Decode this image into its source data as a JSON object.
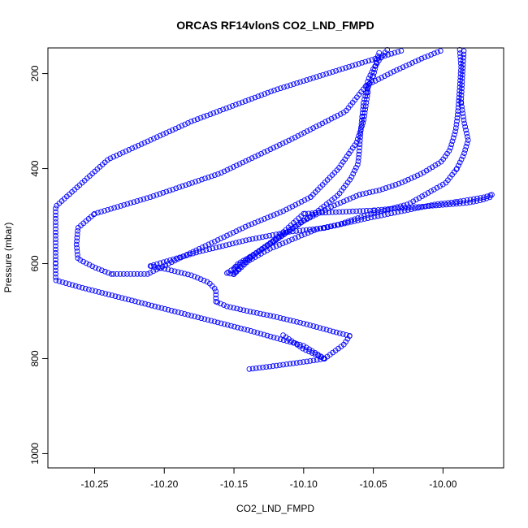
{
  "chart_data": {
    "type": "scatter",
    "title": "ORCAS RF14vlonS CO2_LND_FMPD",
    "xlabel": "CO2_LND_FMPD",
    "ylabel": "Pressure (mbar)",
    "xlim": [
      -10.2835,
      -9.9565
    ],
    "ylim": [
      1030,
      146
    ],
    "y_reversed": true,
    "x_ticks": [
      -10.25,
      -10.2,
      -10.15,
      -10.1,
      -10.05,
      -10.0
    ],
    "x_tick_labels": [
      "-10.25",
      "-10.20",
      "-10.15",
      "-10.10",
      "-10.05",
      "-10.00"
    ],
    "y_ticks": [
      200,
      400,
      600,
      800,
      1000
    ],
    "y_tick_labels": [
      "200",
      "400",
      "600",
      "800",
      "1000"
    ],
    "grid": false,
    "marker": "open-circle",
    "color": "#0000ff",
    "series": [
      {
        "segments": [
          {
            "x": [
              -10.139,
              -10.128,
              -10.11,
              -10.093,
              -10.085
            ],
            "y": [
              822,
              818,
              811,
              804,
              800
            ]
          },
          {
            "x": [
              -10.085,
              -10.078,
              -10.071,
              -10.067
            ],
            "y": [
              800,
              785,
              770,
              752
            ]
          },
          {
            "x": [
              -10.067,
              -10.08,
              -10.1,
              -10.12,
              -10.14,
              -10.155,
              -10.163
            ],
            "y": [
              752,
              742,
              726,
              712,
              700,
              690,
              680
            ]
          },
          {
            "x": [
              -10.163,
              -10.163,
              -10.168,
              -10.18,
              -10.198,
              -10.21
            ],
            "y": [
              680,
              655,
              640,
              625,
              612,
              605
            ]
          },
          {
            "x": [
              -10.21,
              -10.175,
              -10.14,
              -10.11,
              -10.085
            ],
            "y": [
              605,
              575,
              550,
              533,
              525
            ]
          },
          {
            "x": [
              -10.085,
              -10.055,
              -10.025,
              -10.005,
              -9.99
            ],
            "y": [
              525,
              505,
              487,
              475,
              470
            ]
          },
          {
            "x": [
              -9.99,
              -9.97,
              -9.965
            ],
            "y": [
              470,
              460,
              455
            ]
          },
          {
            "x": [
              -9.965,
              -9.966,
              -9.972,
              -9.982,
              -9.998,
              -10.015,
              -10.035,
              -10.05
            ],
            "y": [
              455,
              460,
              466,
              472,
              476,
              480,
              484,
              488
            ]
          },
          {
            "x": [
              -10.05,
              -10.08,
              -10.1
            ],
            "y": [
              488,
              492,
              495
            ]
          },
          {
            "x": [
              -10.1,
              -10.12,
              -10.14,
              -10.155
            ],
            "y": [
              495,
              548,
              590,
              620
            ]
          },
          {
            "x": [
              -10.155,
              -10.149,
              -10.15,
              -10.147,
              -10.138
            ],
            "y": [
              620,
              623,
              610,
              600,
              585
            ]
          },
          {
            "x": [
              -10.138,
              -10.115,
              -10.09,
              -10.075,
              -10.066,
              -10.061,
              -10.06,
              -10.059,
              -10.058
            ],
            "y": [
              585,
              540,
              490,
              455,
              420,
              390,
              360,
              320,
              290
            ]
          },
          {
            "x": [
              -10.058,
              -10.057,
              -10.054,
              -10.05
            ],
            "y": [
              290,
              260,
              230,
              205
            ]
          },
          {
            "x": [
              -10.05,
              -10.048,
              -10.047,
              -10.045
            ],
            "y": [
              205,
              180,
              165,
              150
            ]
          },
          {
            "x": [
              -10.04,
              -10.045,
              -10.05,
              -10.054,
              -10.054
            ],
            "y": [
              150,
              168,
              190,
              215,
              240
            ]
          },
          {
            "x": [
              -10.054,
              -10.057,
              -10.062,
              -10.075,
              -10.095
            ],
            "y": [
              240,
              300,
              345,
              400,
              460
            ]
          },
          {
            "x": [
              -10.095,
              -10.115,
              -10.14,
              -10.165,
              -10.19,
              -10.212
            ],
            "y": [
              460,
              490,
              520,
              555,
              590,
              622
            ]
          },
          {
            "x": [
              -10.212,
              -10.22,
              -10.228,
              -10.238
            ],
            "y": [
              622,
              622,
              622,
              622
            ]
          },
          {
            "x": [
              -10.238,
              -10.25,
              -10.262,
              -10.263,
              -10.262,
              -10.25
            ],
            "y": [
              622,
              608,
              590,
              560,
              525,
              495
            ]
          },
          {
            "x": [
              -10.25,
              -10.21,
              -10.16,
              -10.11,
              -10.07,
              -10.055
            ],
            "y": [
              495,
              460,
              410,
              340,
              280,
              225
            ]
          },
          {
            "x": [
              -10.055,
              -10.035,
              -10.015,
              -10.0
            ],
            "y": [
              225,
              195,
              168,
              150
            ]
          },
          {
            "x": [
              -9.988,
              -9.987,
              -9.988,
              -9.989,
              -9.99,
              -9.991,
              -9.993,
              -9.995,
              -10.001,
              -10.015,
              -10.03,
              -10.045,
              -10.06
            ],
            "y": [
              150,
              185,
              230,
              270,
              300,
              320,
              340,
              360,
              385,
              410,
              430,
              445,
              455
            ]
          },
          {
            "x": [
              -10.06,
              -10.08,
              -10.1
            ],
            "y": [
              455,
              480,
              510
            ]
          },
          {
            "x": [
              -10.1,
              -10.11,
              -10.122,
              -10.135,
              -10.145,
              -10.15
            ],
            "y": [
              510,
              530,
              555,
              580,
              605,
              622
            ]
          },
          {
            "x": [
              -10.15,
              -10.14,
              -10.125,
              -10.105,
              -10.09,
              -10.075
            ],
            "y": [
              622,
              595,
              570,
              545,
              527,
              518
            ]
          },
          {
            "x": [
              -10.075,
              -10.055,
              -10.025,
              -10.01,
              -9.998,
              -9.99
            ],
            "y": [
              518,
              498,
              475,
              450,
              430,
              400
            ]
          },
          {
            "x": [
              -9.99,
              -9.985,
              -9.982,
              -9.985,
              -9.987
            ],
            "y": [
              400,
              370,
              340,
              300,
              260
            ]
          },
          {
            "x": [
              -9.987,
              -9.986,
              -9.985
            ],
            "y": [
              260,
              200,
              150
            ]
          },
          {
            "x": [
              -10.03,
              -10.07,
              -10.12,
              -10.18,
              -10.24,
              -10.278,
              -10.278
            ],
            "y": [
              152,
              188,
              234,
              300,
              380,
              480,
              600
            ]
          },
          {
            "x": [
              -10.278,
              -10.278,
              -10.26,
              -10.2,
              -10.14,
              -10.1,
              -10.085
            ],
            "y": [
              600,
              635,
              650,
              695,
              740,
              773,
              800
            ]
          },
          {
            "x": [
              -10.085,
              -10.1,
              -10.115
            ],
            "y": [
              800,
              780,
              750
            ]
          }
        ]
      }
    ]
  }
}
